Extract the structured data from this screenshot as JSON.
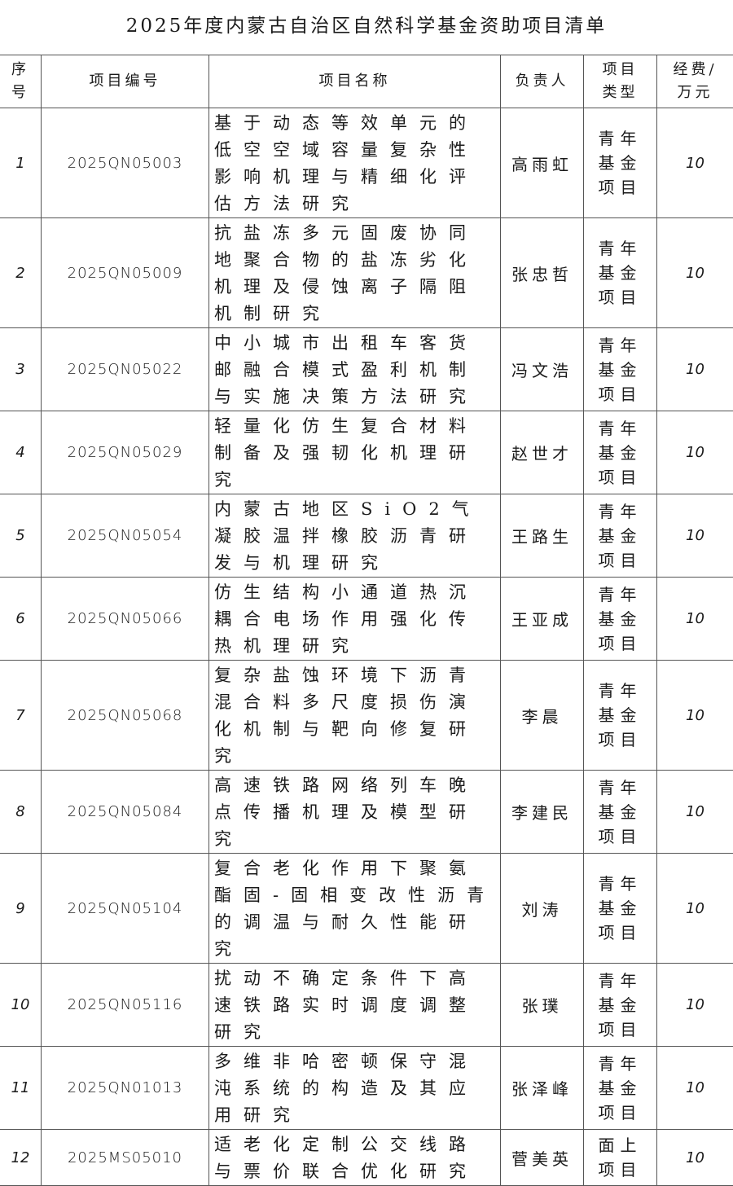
{
  "title": "2025年度内蒙古自治区自然科学基金资助项目清单",
  "headers": {
    "no": "序号",
    "code": "项目编号",
    "name": "项目名称",
    "leader": "负责人",
    "type": "项目类型",
    "fund": "经费/万元"
  },
  "rows": [
    {
      "no": "1",
      "code": "2025QN05003",
      "name": "基于动态等效单元的低空空域容量复杂性影响机理与精细化评估方法研究",
      "leader": "高雨虹",
      "type": "青年基金项目",
      "fund": "10"
    },
    {
      "no": "2",
      "code": "2025QN05009",
      "name": "抗盐冻多元固废协同地聚合物的盐冻劣化机理及侵蚀离子隔阻机制研究",
      "leader": "张忠哲",
      "type": "青年基金项目",
      "fund": "10"
    },
    {
      "no": "3",
      "code": "2025QN05022",
      "name": "中小城市出租车客货邮融合模式盈利机制与实施决策方法研究",
      "leader": "冯文浩",
      "type": "青年基金项目",
      "fund": "10"
    },
    {
      "no": "4",
      "code": "2025QN05029",
      "name": "轻量化仿生复合材料制备及强韧化机理研究",
      "leader": "赵世才",
      "type": "青年基金项目",
      "fund": "10"
    },
    {
      "no": "5",
      "code": "2025QN05054",
      "name": "内蒙古地区SiO2气凝胶温拌橡胶沥青研发与机理研究",
      "leader": "王路生",
      "type": "青年基金项目",
      "fund": "10"
    },
    {
      "no": "6",
      "code": "2025QN05066",
      "name": "仿生结构小通道热沉耦合电场作用强化传热机理研究",
      "leader": "王亚成",
      "type": "青年基金项目",
      "fund": "10"
    },
    {
      "no": "7",
      "code": "2025QN05068",
      "name": "复杂盐蚀环境下沥青混合料多尺度损伤演化机制与靶向修复研究",
      "leader": "李晨",
      "type": "青年基金项目",
      "fund": "10"
    },
    {
      "no": "8",
      "code": "2025QN05084",
      "name": "高速铁路网络列车晚点传播机理及模型研究",
      "leader": "李建民",
      "type": "青年基金项目",
      "fund": "10"
    },
    {
      "no": "9",
      "code": "2025QN05104",
      "name": "复合老化作用下聚氨酯固-固相变改性沥青的调温与耐久性能研究",
      "leader": "刘涛",
      "type": "青年基金项目",
      "fund": "10"
    },
    {
      "no": "10",
      "code": "2025QN05116",
      "name": "扰动不确定条件下高速铁路实时调度调整研究",
      "leader": "张璞",
      "type": "青年基金项目",
      "fund": "10"
    },
    {
      "no": "11",
      "code": "2025QN01013",
      "name": "多维非哈密顿保守混沌系统的构造及其应用研究",
      "leader": "张泽峰",
      "type": "青年基金项目",
      "fund": "10"
    },
    {
      "no": "12",
      "code": "2025MS05010",
      "name": "适老化定制公交线路与票价联合优化研究",
      "leader": "菅美英",
      "type": "面上项目",
      "fund": "10"
    }
  ]
}
